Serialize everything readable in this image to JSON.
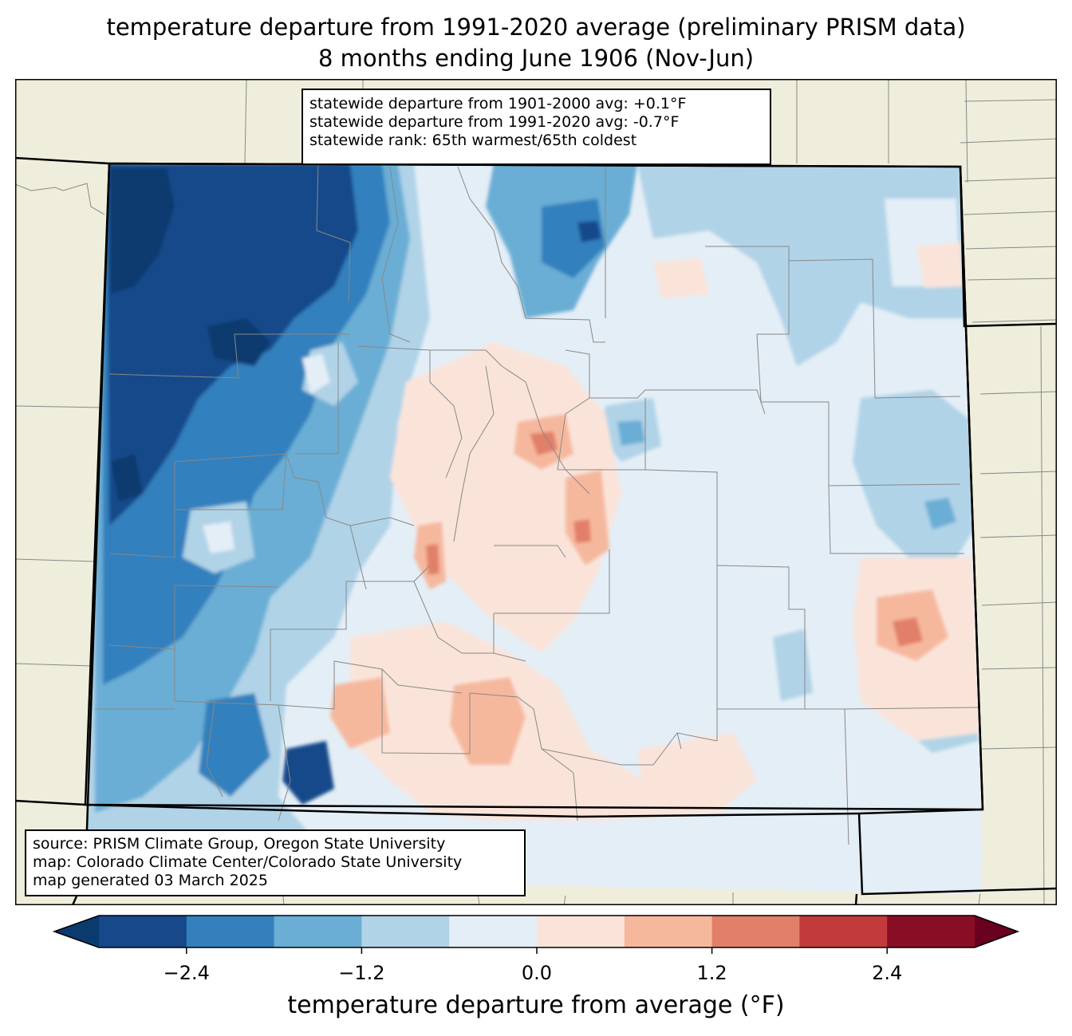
{
  "title": {
    "line1": "temperature departure from 1991-2020 average (preliminary PRISM data)",
    "line2": "8 months ending June 1906 (Nov-Jun)"
  },
  "stats_box": {
    "line1": "statewide departure from 1901-2000 avg: +0.1°F",
    "line2": "statewide departure from 1991-2020 avg: -0.7°F",
    "line3": "statewide rank: 65th warmest/65th coldest"
  },
  "credits_box": {
    "line1": "source: PRISM Climate Group, Oregon State University",
    "line2": "map: Colorado Climate Center/Colorado State University",
    "line3": "map generated 03 March 2025"
  },
  "colorbar": {
    "label": "temperature departure from average (°F)",
    "ticks": [
      "−2.4",
      "−1.2",
      "0.0",
      "1.2",
      "2.4"
    ],
    "tick_values": [
      -2.4,
      -1.2,
      0.0,
      1.2,
      2.4
    ],
    "range": [
      -3.0,
      3.0
    ],
    "step": 0.6,
    "colors": [
      "#0b3a6f",
      "#16488a",
      "#3380bd",
      "#6aaed5",
      "#b0d3e7",
      "#e4eef6",
      "#fae4da",
      "#f6b89d",
      "#e17f69",
      "#c23a3c",
      "#8a0d26",
      "#6a0020"
    ]
  },
  "map": {
    "land_color": "#efeedc",
    "ocean_color": "#ffffff",
    "county_line_color": "#888888",
    "state_line_color": "#000000"
  }
}
